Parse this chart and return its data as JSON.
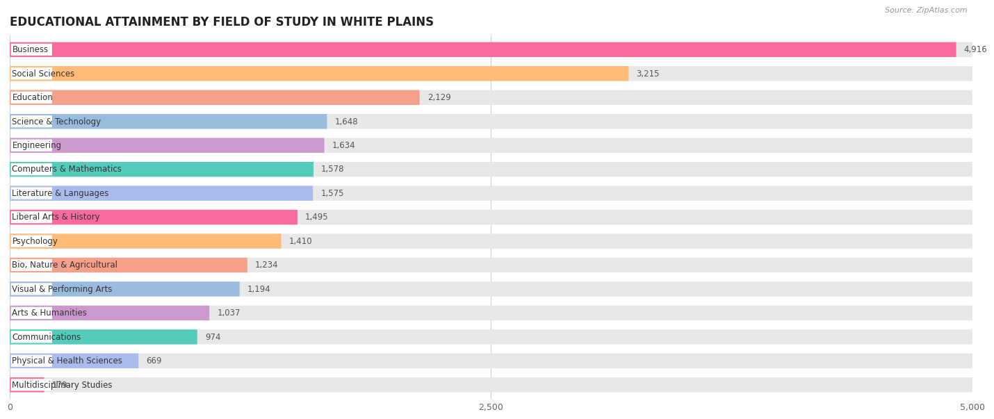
{
  "title": "EDUCATIONAL ATTAINMENT BY FIELD OF STUDY IN WHITE PLAINS",
  "source": "Source: ZipAtlas.com",
  "categories": [
    "Business",
    "Social Sciences",
    "Education",
    "Science & Technology",
    "Engineering",
    "Computers & Mathematics",
    "Literature & Languages",
    "Liberal Arts & History",
    "Psychology",
    "Bio, Nature & Agricultural",
    "Visual & Performing Arts",
    "Arts & Humanities",
    "Communications",
    "Physical & Health Sciences",
    "Multidisciplinary Studies"
  ],
  "values": [
    4916,
    3215,
    2129,
    1648,
    1634,
    1578,
    1575,
    1495,
    1410,
    1234,
    1194,
    1037,
    974,
    669,
    179
  ],
  "bar_colors": [
    "#F96B9E",
    "#FFBB77",
    "#F5A08A",
    "#99BBDD",
    "#CC99CC",
    "#55CCBB",
    "#AABBEE",
    "#F96B9E",
    "#FFBB77",
    "#F5A08A",
    "#99BBDD",
    "#CC99CC",
    "#55CCBB",
    "#AABBEE",
    "#F96B9E"
  ],
  "xlim": [
    0,
    5000
  ],
  "xticks": [
    0,
    2500,
    5000
  ],
  "background_color": "#ffffff",
  "bar_bg_color": "#e8e8e8",
  "label_bg_color": "#ffffff"
}
